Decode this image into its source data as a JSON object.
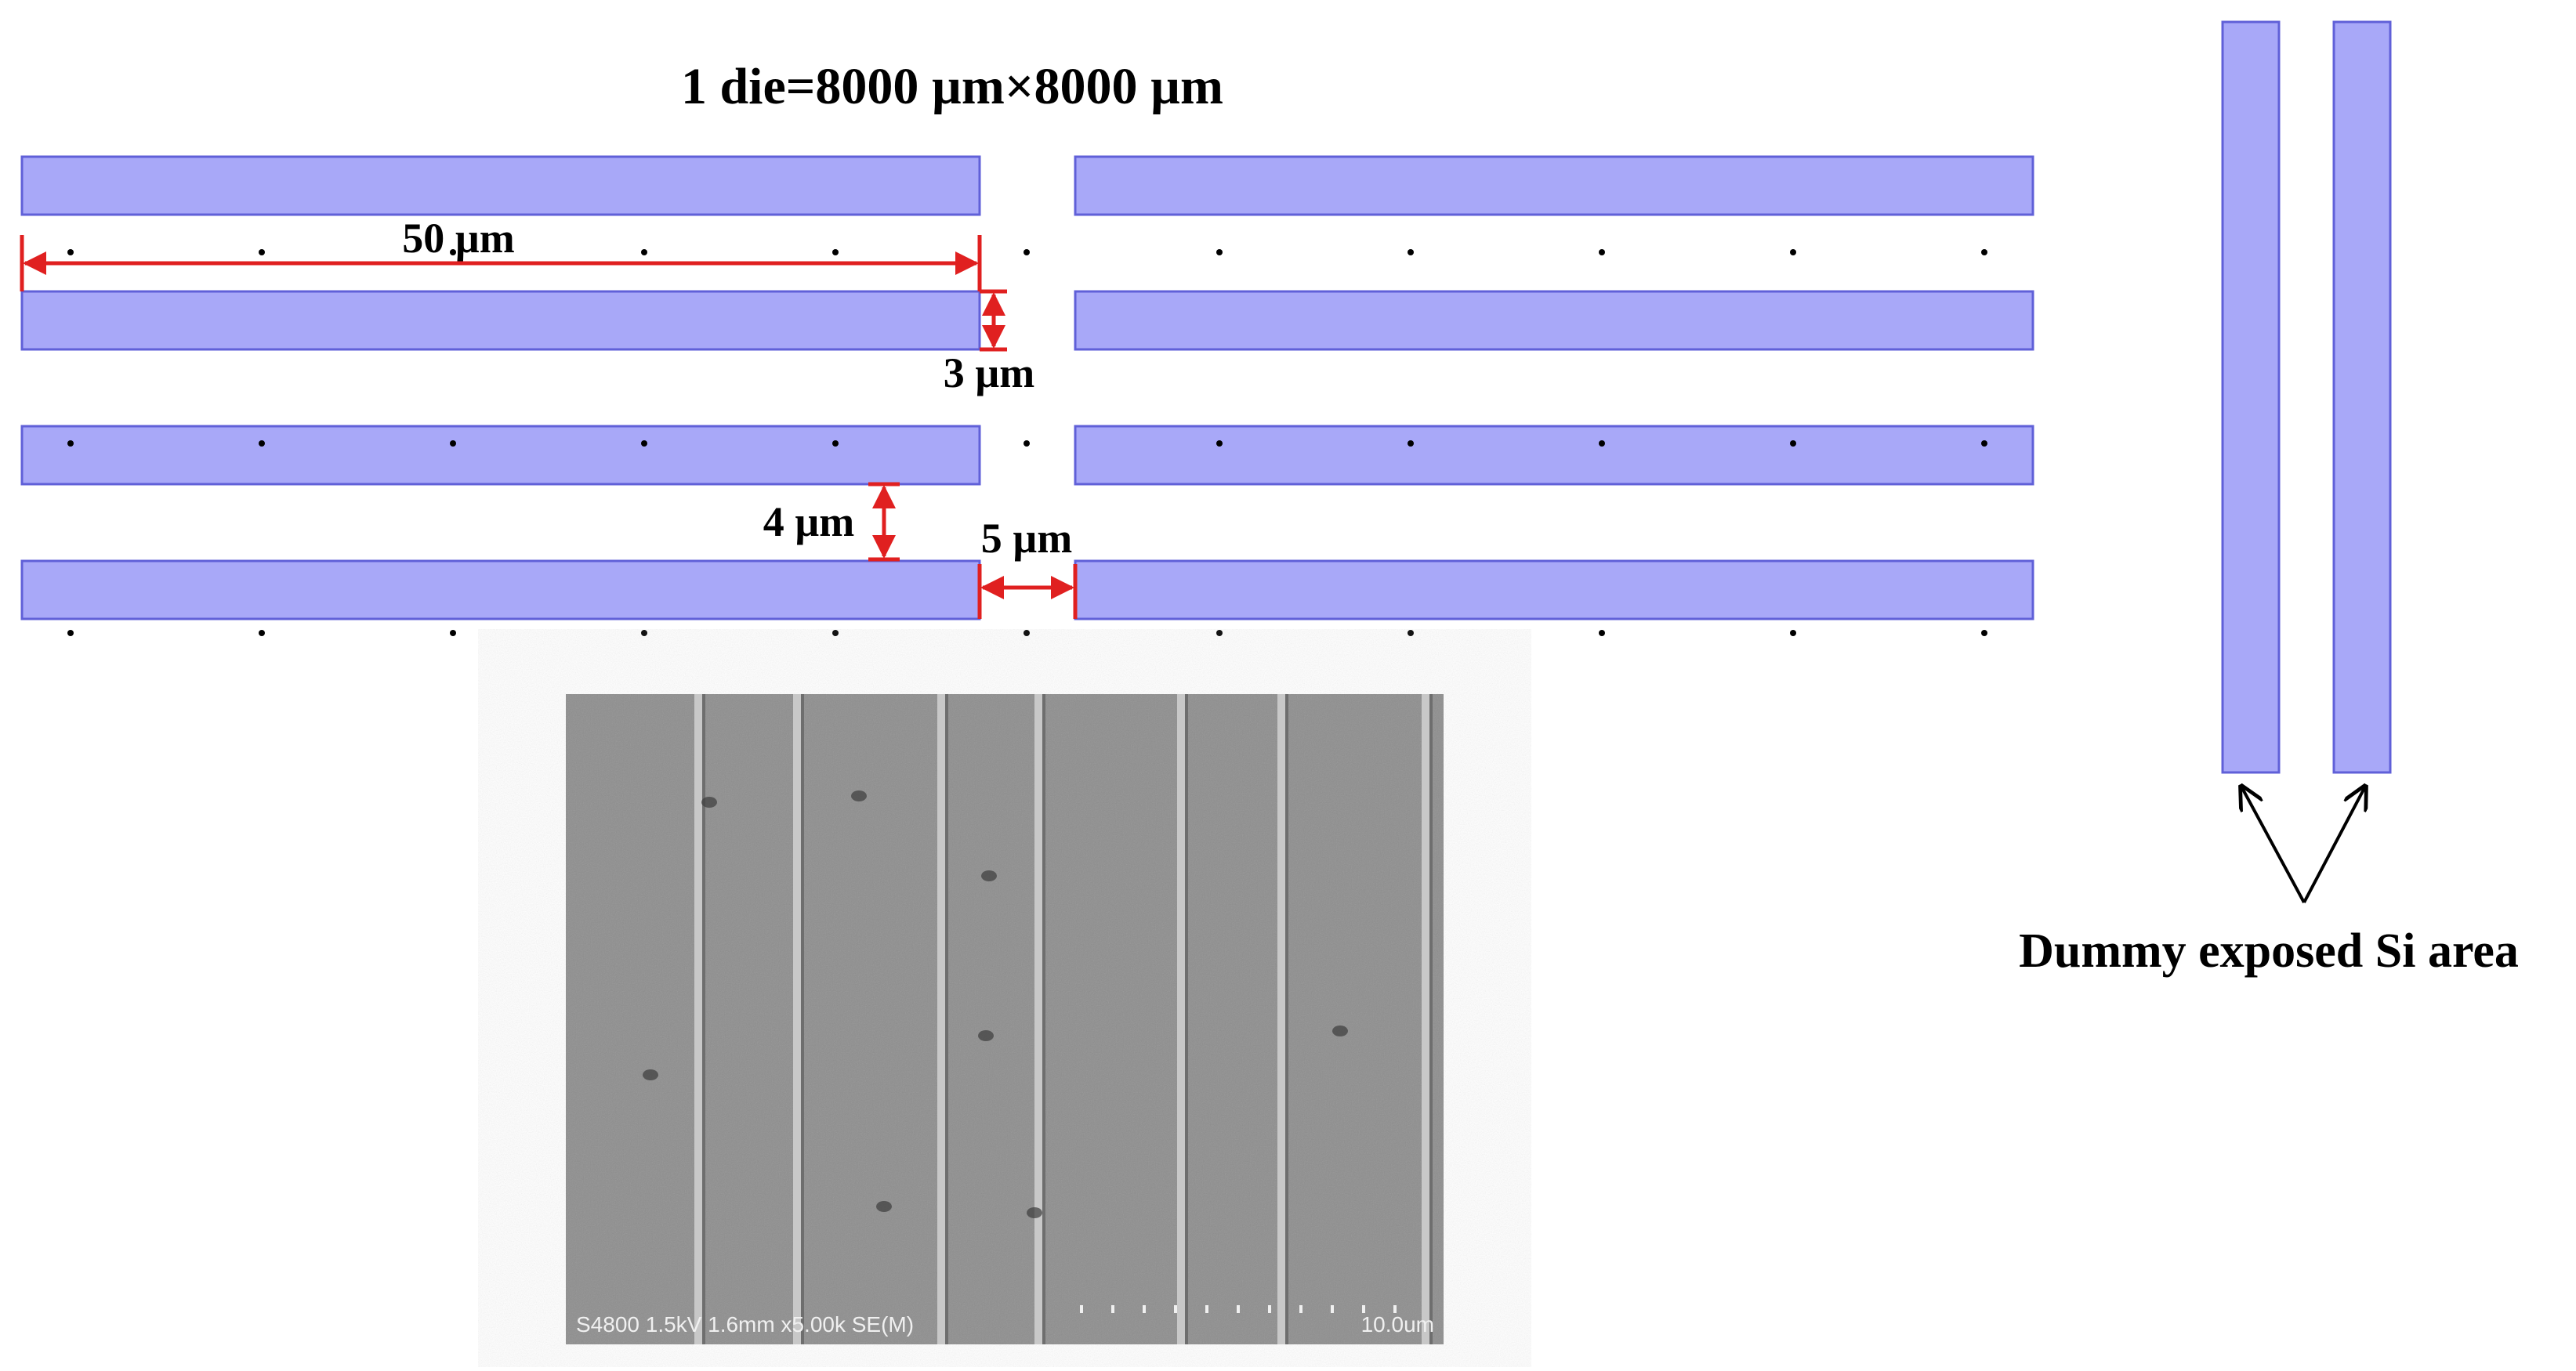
{
  "title": "1 die=8000 µm×8000 µm",
  "dimensions": {
    "length_label": "50 µm",
    "line_width_label": "3 µm",
    "space_label": "4 µm",
    "gap_label": "5 µm"
  },
  "dummy": {
    "label": "Dummy exposed Si area"
  },
  "sem": {
    "info": "S4800 1.5kV 1.6mm x5.00k SE(M)",
    "scale": "10.0um"
  },
  "colors": {
    "line_fill": "#a8a8f8",
    "line_stroke": "#6060d8",
    "dimension": "#e02020",
    "sem_background": "#8e8e8e"
  }
}
